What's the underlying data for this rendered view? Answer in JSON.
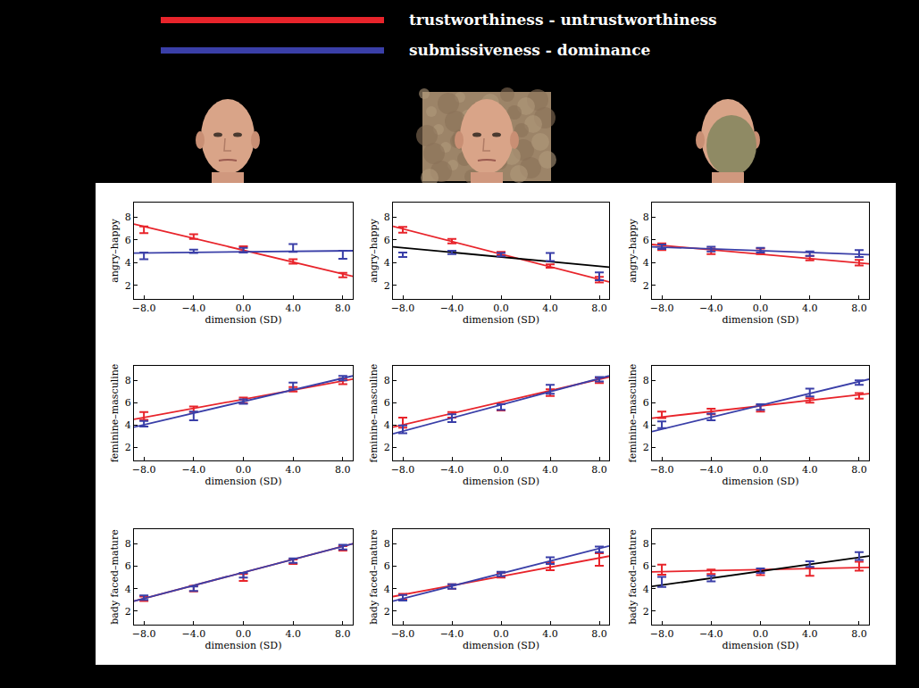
{
  "chart_data": [
    {
      "type": "scatter",
      "y_label": "angry–happy",
      "x_label": "dimension (SD)",
      "x": [
        -8,
        -4,
        0,
        4,
        8
      ],
      "xlim": [
        -8.8,
        8.8
      ],
      "ylim": [
        0.8,
        9.3
      ],
      "xticks": [
        {
          "value": -8,
          "label": "−8.0"
        },
        {
          "value": -4,
          "label": "−4.0"
        },
        {
          "value": 0,
          "label": "0.0"
        },
        {
          "value": 4,
          "label": "4.0"
        },
        {
          "value": 8,
          "label": "8.0"
        }
      ],
      "yticks": [
        2,
        4,
        6,
        8
      ],
      "series": [
        {
          "name": "trustworthiness - untrustworthiness",
          "color": "#e8242b",
          "values": [
            6.9,
            6.3,
            5.2,
            4.1,
            2.9
          ],
          "errors": [
            0.3,
            0.2,
            0.25,
            0.2,
            0.2
          ],
          "fit": {
            "x": [
              -8.8,
              8.8
            ],
            "values": [
              7.4,
              2.8
            ],
            "color": "#e8242b"
          }
        },
        {
          "name": "submissiveness - dominance",
          "color": "#3a3fa8",
          "values": [
            4.6,
            5.0,
            5.1,
            5.3,
            4.7
          ],
          "errors": [
            0.3,
            0.15,
            0.2,
            0.35,
            0.35
          ],
          "fit": {
            "x": [
              -8.8,
              8.8
            ],
            "values": [
              4.85,
              5.05
            ],
            "color": "#3a3fa8"
          }
        }
      ]
    },
    {
      "type": "scatter",
      "y_label": "angry–happy",
      "x_label": "dimension (SD)",
      "x": [
        -8,
        -4,
        0,
        4,
        8
      ],
      "xlim": [
        -8.8,
        8.8
      ],
      "ylim": [
        0.8,
        9.3
      ],
      "xticks": [
        {
          "value": -8,
          "label": "−8.0"
        },
        {
          "value": -4,
          "label": "−4.0"
        },
        {
          "value": 0,
          "label": "0.0"
        },
        {
          "value": 4,
          "label": "4.0"
        },
        {
          "value": 8,
          "label": "8.0"
        }
      ],
      "yticks": [
        2,
        4,
        6,
        8
      ],
      "series": [
        {
          "name": "trustworthiness - untrustworthiness",
          "color": "#e8242b",
          "values": [
            6.9,
            5.9,
            4.8,
            3.7,
            2.5
          ],
          "errors": [
            0.25,
            0.2,
            0.15,
            0.15,
            0.25
          ],
          "fit": {
            "x": [
              -8.8,
              8.8
            ],
            "values": [
              7.2,
              2.3
            ],
            "color": "#e8242b"
          }
        },
        {
          "name": "submissiveness - dominance",
          "color": "#3a3fa8",
          "values": [
            4.7,
            4.9,
            4.7,
            4.5,
            2.8
          ],
          "errors": [
            0.2,
            0.15,
            0.15,
            0.35,
            0.35
          ],
          "fit": {
            "x": [
              -8.8,
              8.8
            ],
            "values": [
              5.4,
              3.6
            ],
            "color": "#000000"
          }
        }
      ]
    },
    {
      "type": "scatter",
      "y_label": "angry–happy",
      "x_label": "dimension (SD)",
      "x": [
        -8,
        -4,
        0,
        4,
        8
      ],
      "xlim": [
        -8.8,
        8.8
      ],
      "ylim": [
        0.8,
        9.3
      ],
      "xticks": [
        {
          "value": -8,
          "label": "−8.0"
        },
        {
          "value": -4,
          "label": "−4.0"
        },
        {
          "value": 0,
          "label": "0.0"
        },
        {
          "value": 4,
          "label": "4.0"
        },
        {
          "value": 8,
          "label": "8.0"
        }
      ],
      "yticks": [
        2,
        4,
        6,
        8
      ],
      "series": [
        {
          "name": "trustworthiness - untrustworthiness",
          "color": "#e8242b",
          "values": [
            5.4,
            5.0,
            5.0,
            4.4,
            4.0
          ],
          "errors": [
            0.3,
            0.25,
            0.25,
            0.2,
            0.25
          ],
          "fit": {
            "x": [
              -8.8,
              8.8
            ],
            "values": [
              5.6,
              3.9
            ],
            "color": "#e8242b"
          }
        },
        {
          "name": "submissiveness - dominance",
          "color": "#3a3fa8",
          "values": [
            5.4,
            5.2,
            5.1,
            4.8,
            4.8
          ],
          "errors": [
            0.2,
            0.2,
            0.2,
            0.2,
            0.3
          ],
          "fit": {
            "x": [
              -8.8,
              8.8
            ],
            "values": [
              5.4,
              4.7
            ],
            "color": "#3a3fa8"
          }
        }
      ]
    },
    {
      "type": "scatter",
      "y_label": "feminine–masculine",
      "x_label": "dimension (SD)",
      "x": [
        -8,
        -4,
        0,
        4,
        8
      ],
      "xlim": [
        -8.8,
        8.8
      ],
      "ylim": [
        0.8,
        9.3
      ],
      "xticks": [
        {
          "value": -8,
          "label": "−8.0"
        },
        {
          "value": -4,
          "label": "−4.0"
        },
        {
          "value": 0,
          "label": "0.0"
        },
        {
          "value": 4,
          "label": "4.0"
        },
        {
          "value": 8,
          "label": "8.0"
        }
      ],
      "yticks": [
        2,
        4,
        6,
        8
      ],
      "series": [
        {
          "name": "trustworthiness - untrustworthiness",
          "color": "#e8242b",
          "values": [
            4.8,
            5.4,
            6.2,
            7.2,
            7.9
          ],
          "errors": [
            0.35,
            0.25,
            0.25,
            0.2,
            0.25
          ],
          "fit": {
            "x": [
              -8.8,
              8.8
            ],
            "values": [
              4.5,
              8.1
            ],
            "color": "#e8242b"
          }
        },
        {
          "name": "submissiveness - dominance",
          "color": "#3a3fa8",
          "values": [
            4.1,
            4.8,
            6.1,
            7.5,
            8.2
          ],
          "errors": [
            0.25,
            0.4,
            0.2,
            0.3,
            0.2
          ],
          "fit": {
            "x": [
              -8.8,
              8.8
            ],
            "values": [
              3.8,
              8.4
            ],
            "color": "#3a3fa8"
          }
        }
      ]
    },
    {
      "type": "scatter",
      "y_label": "feminine–masculine",
      "x_label": "dimension (SD)",
      "x": [
        -8,
        -4,
        0,
        4,
        8
      ],
      "xlim": [
        -8.8,
        8.8
      ],
      "ylim": [
        0.8,
        9.3
      ],
      "xticks": [
        {
          "value": -8,
          "label": "−8.0"
        },
        {
          "value": -4,
          "label": "−4.0"
        },
        {
          "value": 0,
          "label": "0.0"
        },
        {
          "value": 4,
          "label": "4.0"
        },
        {
          "value": 8,
          "label": "8.0"
        }
      ],
      "yticks": [
        2,
        4,
        6,
        8
      ],
      "series": [
        {
          "name": "trustworthiness - untrustworthiness",
          "color": "#e8242b",
          "values": [
            4.2,
            4.9,
            5.6,
            6.9,
            8.0
          ],
          "errors": [
            0.45,
            0.25,
            0.3,
            0.3,
            0.25
          ],
          "fit": {
            "x": [
              -8.8,
              8.8
            ],
            "values": [
              3.8,
              8.3
            ],
            "color": "#e8242b"
          }
        },
        {
          "name": "submissiveness - dominance",
          "color": "#3a3fa8",
          "values": [
            3.6,
            4.6,
            5.6,
            7.2,
            8.1
          ],
          "errors": [
            0.35,
            0.35,
            0.25,
            0.4,
            0.2
          ],
          "fit": {
            "x": [
              -8.8,
              8.8
            ],
            "values": [
              3.2,
              8.4
            ],
            "color": "#3a3fa8"
          }
        }
      ]
    },
    {
      "type": "scatter",
      "y_label": "feminine–masculine",
      "x_label": "dimension (SD)",
      "x": [
        -8,
        -4,
        0,
        4,
        8
      ],
      "xlim": [
        -8.8,
        8.8
      ],
      "ylim": [
        0.8,
        9.3
      ],
      "xticks": [
        {
          "value": -8,
          "label": "−8.0"
        },
        {
          "value": -4,
          "label": "−4.0"
        },
        {
          "value": 0,
          "label": "0.0"
        },
        {
          "value": 4,
          "label": "4.0"
        },
        {
          "value": 8,
          "label": "8.0"
        }
      ],
      "yticks": [
        2,
        4,
        6,
        8
      ],
      "series": [
        {
          "name": "trustworthiness - untrustworthiness",
          "color": "#e8242b",
          "values": [
            4.9,
            5.2,
            5.5,
            6.2,
            6.6
          ],
          "errors": [
            0.3,
            0.25,
            0.3,
            0.2,
            0.25
          ],
          "fit": {
            "x": [
              -8.8,
              8.8
            ],
            "values": [
              4.6,
              6.8
            ],
            "color": "#e8242b"
          }
        },
        {
          "name": "submissiveness - dominance",
          "color": "#3a3fa8",
          "values": [
            4.0,
            4.7,
            5.6,
            6.9,
            7.8
          ],
          "errors": [
            0.3,
            0.3,
            0.25,
            0.35,
            0.2
          ],
          "fit": {
            "x": [
              -8.8,
              8.8
            ],
            "values": [
              3.4,
              8.1
            ],
            "color": "#3a3fa8"
          }
        }
      ]
    },
    {
      "type": "scatter",
      "y_label": "bady faced–mature",
      "x_label": "dimension (SD)",
      "x": [
        -8,
        -4,
        0,
        4,
        8
      ],
      "xlim": [
        -8.8,
        8.8
      ],
      "ylim": [
        0.8,
        9.3
      ],
      "xticks": [
        {
          "value": -8,
          "label": "−8.0"
        },
        {
          "value": -4,
          "label": "−4.0"
        },
        {
          "value": 0,
          "label": "0.0"
        },
        {
          "value": 4,
          "label": "4.0"
        },
        {
          "value": 8,
          "label": "8.0"
        }
      ],
      "yticks": [
        2,
        4,
        6,
        8
      ],
      "series": [
        {
          "name": "trustworthiness - untrustworthiness",
          "color": "#e8242b",
          "values": [
            3.1,
            4.0,
            5.0,
            6.4,
            7.6
          ],
          "errors": [
            0.2,
            0.25,
            0.3,
            0.2,
            0.2
          ],
          "fit": {
            "x": [
              -8.8,
              8.8
            ],
            "values": [
              2.9,
              8.0
            ],
            "color": "#e8242b"
          }
        },
        {
          "name": "submissiveness - dominance",
          "color": "#3a3fa8",
          "values": [
            3.2,
            4.0,
            5.2,
            6.5,
            7.7
          ],
          "errors": [
            0.2,
            0.2,
            0.2,
            0.2,
            0.2
          ],
          "fit": {
            "x": [
              -8.8,
              8.8
            ],
            "values": [
              2.9,
              8.0
            ],
            "color": "#3a3fa8"
          }
        }
      ]
    },
    {
      "type": "scatter",
      "y_label": "bady faced–mature",
      "x_label": "dimension (SD)",
      "x": [
        -8,
        -4,
        0,
        4,
        8
      ],
      "xlim": [
        -8.8,
        8.8
      ],
      "ylim": [
        0.8,
        9.3
      ],
      "xticks": [
        {
          "value": -8,
          "label": "−8.0"
        },
        {
          "value": -4,
          "label": "−4.0"
        },
        {
          "value": 0,
          "label": "0.0"
        },
        {
          "value": 4,
          "label": "4.0"
        },
        {
          "value": 8,
          "label": "8.0"
        }
      ],
      "yticks": [
        2,
        4,
        6,
        8
      ],
      "series": [
        {
          "name": "trustworthiness - untrustworthiness",
          "color": "#e8242b",
          "values": [
            3.3,
            4.2,
            5.2,
            6.0,
            6.6
          ],
          "errors": [
            0.25,
            0.2,
            0.2,
            0.35,
            0.55
          ],
          "fit": {
            "x": [
              -8.8,
              8.8
            ],
            "values": [
              3.3,
              6.9
            ],
            "color": "#e8242b"
          }
        },
        {
          "name": "submissiveness - dominance",
          "color": "#3a3fa8",
          "values": [
            3.2,
            4.2,
            5.3,
            6.5,
            7.5
          ],
          "errors": [
            0.25,
            0.2,
            0.2,
            0.3,
            0.25
          ],
          "fit": {
            "x": [
              -8.8,
              8.8
            ],
            "values": [
              2.9,
              7.8
            ],
            "color": "#3a3fa8"
          }
        }
      ]
    },
    {
      "type": "scatter",
      "y_label": "bady faced–mature",
      "x_label": "dimension (SD)",
      "x": [
        -8,
        -4,
        0,
        4,
        8
      ],
      "xlim": [
        -8.8,
        8.8
      ],
      "ylim": [
        0.8,
        9.3
      ],
      "xticks": [
        {
          "value": -8,
          "label": "−8.0"
        },
        {
          "value": -4,
          "label": "−4.0"
        },
        {
          "value": 0,
          "label": "0.0"
        },
        {
          "value": 4,
          "label": "4.0"
        },
        {
          "value": 8,
          "label": "8.0"
        }
      ],
      "yticks": [
        2,
        4,
        6,
        8
      ],
      "series": [
        {
          "name": "trustworthiness - untrustworthiness",
          "color": "#e8242b",
          "values": [
            5.7,
            5.5,
            5.4,
            5.5,
            6.0
          ],
          "errors": [
            0.45,
            0.2,
            0.2,
            0.35,
            0.4
          ],
          "fit": {
            "x": [
              -8.8,
              8.8
            ],
            "values": [
              5.5,
              5.9
            ],
            "color": "#e8242b"
          }
        },
        {
          "name": "submissiveness - dominance",
          "color": "#3a3fa8",
          "values": [
            4.6,
            4.9,
            5.6,
            6.2,
            6.9
          ],
          "errors": [
            0.45,
            0.25,
            0.2,
            0.25,
            0.35
          ],
          "fit": {
            "x": [
              -8.8,
              8.8
            ],
            "values": [
              4.2,
              6.9
            ],
            "color": "#000000"
          }
        }
      ]
    }
  ]
}
